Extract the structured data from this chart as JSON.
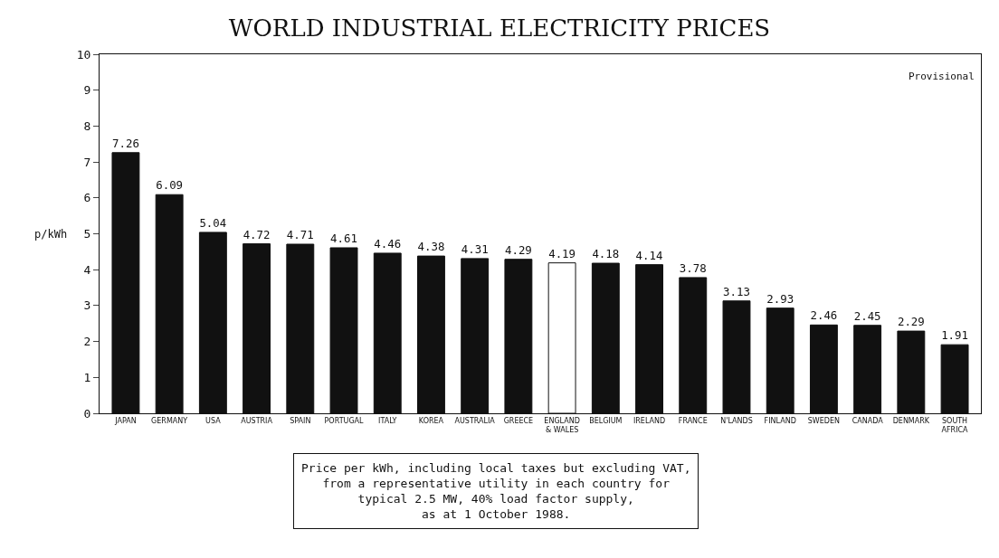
{
  "chart_data": {
    "type": "bar",
    "title": "WORLD INDUSTRIAL ELECTRICITY PRICES",
    "ylabel": "p/kWh",
    "categories": [
      "JAPAN",
      "GERMANY",
      "USA",
      "AUSTRIA",
      "SPAIN",
      "PORTUGAL",
      "ITALY",
      "KOREA",
      "AUSTRALIA",
      "GREECE",
      "ENGLAND\n& WALES",
      "BELGIUM",
      "IRELAND",
      "FRANCE",
      "N'LANDS",
      "FINLAND",
      "SWEDEN",
      "CANADA",
      "DENMARK",
      "SOUTH\nAFRICA"
    ],
    "values": [
      7.26,
      6.09,
      5.04,
      4.72,
      4.71,
      4.61,
      4.46,
      4.38,
      4.31,
      4.29,
      4.19,
      4.18,
      4.14,
      3.78,
      3.13,
      2.93,
      2.46,
      2.45,
      2.29,
      1.91
    ],
    "colors": [
      "#111111",
      "#111111",
      "#111111",
      "#111111",
      "#111111",
      "#111111",
      "#111111",
      "#111111",
      "#111111",
      "#111111",
      "#ffffff",
      "#111111",
      "#111111",
      "#111111",
      "#111111",
      "#111111",
      "#111111",
      "#111111",
      "#111111",
      "#111111"
    ],
    "ylim": [
      0,
      10
    ],
    "yticks": [
      0,
      1,
      2,
      3,
      4,
      5,
      6,
      7,
      8,
      9,
      10
    ],
    "legend": false,
    "data_labels": true,
    "annotations": [
      "Provisional",
      "Price per kWh, including local taxes but excluding VAT,\nfrom a representative utility in each country for\ntypical 2.5 MW, 40% load factor supply,\nas at 1 October 1988."
    ]
  }
}
